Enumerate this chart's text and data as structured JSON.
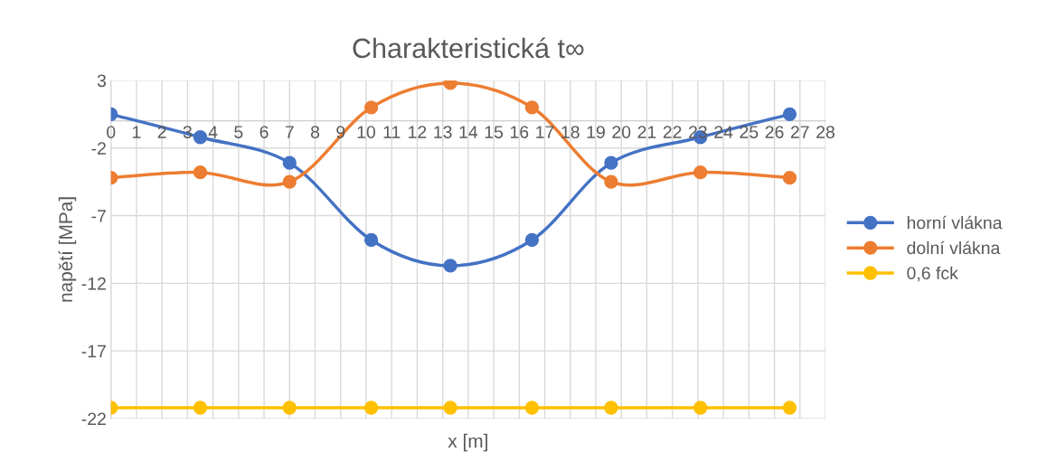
{
  "chart_data": {
    "type": "line",
    "title": "Charakteristická t∞",
    "xlabel": "x [m]",
    "ylabel": "napětí [MPa]",
    "x": [
      0,
      3.5,
      7,
      10.2,
      13.3,
      16.5,
      19.6,
      23.1,
      26.6
    ],
    "series": [
      {
        "name": "horní vlákna",
        "color": "#4472c4",
        "values": [
          0.5,
          -1.2,
          -3.1,
          -8.8,
          -10.7,
          -8.8,
          -3.1,
          -1.2,
          0.5
        ]
      },
      {
        "name": "dolní vlákna",
        "color": "#ed7d31",
        "values": [
          -4.2,
          -3.8,
          -4.5,
          1.0,
          2.8,
          1.0,
          -4.5,
          -3.8,
          -4.2
        ]
      },
      {
        "name": "0,6 fck",
        "color": "#ffc000",
        "values": [
          -21.2,
          -21.2,
          -21.2,
          -21.2,
          -21.2,
          -21.2,
          -21.2,
          -21.2,
          -21.2
        ]
      }
    ],
    "xlim": [
      0,
      28
    ],
    "xticks": [
      0,
      1,
      2,
      3,
      4,
      5,
      6,
      7,
      8,
      9,
      10,
      11,
      12,
      13,
      14,
      15,
      16,
      17,
      18,
      19,
      20,
      21,
      22,
      23,
      24,
      25,
      26,
      27,
      28
    ],
    "ylim": [
      -22,
      3
    ],
    "yticks": [
      -22,
      -17,
      -12,
      -7,
      -2,
      3
    ],
    "grid": true,
    "legend": "right",
    "marker": "circle",
    "line_style": "solid"
  }
}
